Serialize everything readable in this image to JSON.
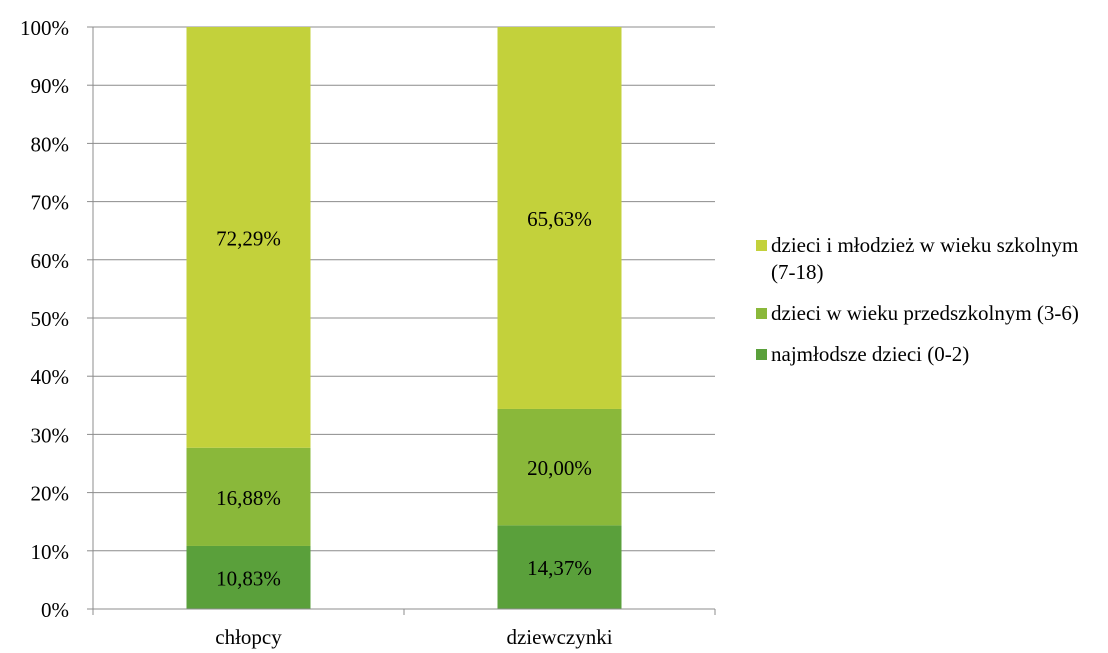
{
  "chart_data": {
    "type": "bar",
    "stacked": true,
    "percent": true,
    "categories": [
      "chłopcy",
      "dziewczynki"
    ],
    "series": [
      {
        "name": "najmłodsze dzieci (0-2)",
        "color": "#5aa03b",
        "values": [
          10.83,
          14.37
        ],
        "labels": [
          "10,83%",
          "14,37%"
        ]
      },
      {
        "name": "dzieci w wieku przedszkolnym (3-6)",
        "color": "#8ab83a",
        "values": [
          16.88,
          20.0
        ],
        "labels": [
          "16,88%",
          "20,00%"
        ]
      },
      {
        "name": "dzieci i młodzież w wieku szkolnym (7-18)",
        "color": "#c3d13b",
        "values": [
          72.29,
          65.63
        ],
        "labels": [
          "72,29%",
          "65,63%"
        ]
      }
    ],
    "yticks": [
      "0%",
      "10%",
      "20%",
      "30%",
      "40%",
      "50%",
      "60%",
      "70%",
      "80%",
      "90%",
      "100%"
    ],
    "ylim": [
      0,
      100
    ],
    "grid": true,
    "legend_position": "right"
  },
  "legend": [
    {
      "label": "dzieci i młodzież w wieku szkolnym (7-18)",
      "color": "#c3d13b"
    },
    {
      "label": "dzieci w wieku przedszkolnym (3-6)",
      "color": "#8ab83a"
    },
    {
      "label": "najmłodsze dzieci (0-2)",
      "color": "#5aa03b"
    }
  ]
}
